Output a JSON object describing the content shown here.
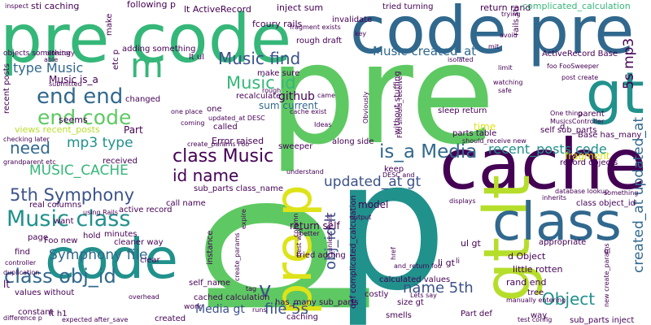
{
  "palette": {
    "dark_purple": "#440154",
    "indigo": "#3b528b",
    "blue": "#31688e",
    "teal": "#21918c",
    "green": "#35b779",
    "light_green": "#5ec962",
    "yellow_green": "#b5de2b",
    "yellow": "#dde318"
  },
  "words": [
    {
      "text": "p"
    },
    {
      "text": "pre"
    },
    {
      "text": "code"
    },
    {
      "text": "code pre"
    },
    {
      "text": "pre code"
    },
    {
      "text": "cache"
    },
    {
      "text": "gt lt"
    },
    {
      "text": "gt"
    },
    {
      "text": "class"
    },
    {
      "text": "p"
    },
    {
      "text": "pre p"
    },
    {
      "text": "m"
    },
    {
      "text": "Music class"
    },
    {
      "text": "class obj_id"
    },
    {
      "text": "end end"
    },
    {
      "text": "end code"
    },
    {
      "text": "Music find"
    },
    {
      "text": "Music id"
    },
    {
      "text": "class Music"
    },
    {
      "text": "is_a Media"
    },
    {
      "text": "id name"
    },
    {
      "text": "5th Symphony"
    },
    {
      "text": "MUSIC_CACHE"
    },
    {
      "text": "need"
    },
    {
      "text": "mp3 type"
    },
    {
      "text": "type Music"
    },
    {
      "text": "Symphony file"
    },
    {
      "text": "Object"
    },
    {
      "text": "name 5th"
    },
    {
      "text": "file 5s"
    },
    {
      "text": "Music created_at"
    },
    {
      "text": "recent_posts code"
    },
    {
      "text": "updated_at gt"
    },
    {
      "text": "obj_id lt"
    },
    {
      "text": "5s mp3"
    },
    {
      "text": "created_at updated_at"
    },
    {
      "text": "Media gt"
    },
    {
      "text": "v"
    },
    {
      "text": "Music is_a"
    },
    {
      "text": "sti caching"
    },
    {
      "text": "following p"
    },
    {
      "text": "lt ActiveRecord"
    },
    {
      "text": "inject sum"
    },
    {
      "text": "fcoury rails"
    },
    {
      "text": "return rand"
    },
    {
      "text": "complicated_calculation"
    },
    {
      "text": "github"
    },
    {
      "text": "sum current"
    },
    {
      "text": "views recent_posts"
    },
    {
      "text": "Error raised"
    },
    {
      "text": "Part"
    },
    {
      "text": "recalculate"
    },
    {
      "text": "time"
    },
    {
      "text": "fragment"
    },
    {
      "text": "model"
    },
    {
      "text": "return self"
    },
    {
      "text": "class object_id"
    },
    {
      "text": "li gt"
    },
    {
      "text": "ul gt"
    },
    {
      "text": "d Object"
    },
    {
      "text": "little rotten"
    },
    {
      "text": "rand end"
    },
    {
      "text": "tree"
    },
    {
      "text": "calculated values"
    },
    {
      "text": "cached calculation"
    },
    {
      "text": "has_many sub_parts"
    },
    {
      "text": "self sub_parts"
    },
    {
      "text": "Base has_many"
    },
    {
      "text": "record objects"
    },
    {
      "text": "appropriate"
    },
    {
      "text": "seems"
    },
    {
      "text": "want"
    },
    {
      "text": "minutes"
    },
    {
      "text": "hold"
    },
    {
      "text": "cleaner way"
    },
    {
      "text": "instance"
    },
    {
      "text": "keep"
    },
    {
      "text": "sub_parts class_name"
    },
    {
      "text": "call name"
    },
    {
      "text": "along side"
    },
    {
      "text": "created"
    },
    {
      "text": "constant"
    },
    {
      "text": "lt h1"
    },
    {
      "text": "values without"
    },
    {
      "text": "caching"
    },
    {
      "text": "smells"
    },
    {
      "text": "costly"
    },
    {
      "text": "size gt"
    },
    {
      "text": "Part def"
    },
    {
      "text": "way"
    },
    {
      "text": "sub_parts inject"
    },
    {
      "text": "def complicated_calculation"
    },
    {
      "text": "parts table"
    },
    {
      "text": "recent posts"
    },
    {
      "text": "rough draft"
    },
    {
      "text": "invalidate"
    },
    {
      "text": "tried turning"
    },
    {
      "text": "changed"
    },
    {
      "text": "make sure"
    },
    {
      "text": "ActiveRecord Base"
    },
    {
      "text": "parent"
    },
    {
      "text": "sleep return"
    },
    {
      "text": "without stuffing"
    },
    {
      "text": "self_name"
    },
    {
      "text": "Foo new"
    },
    {
      "text": "page"
    },
    {
      "text": "find"
    },
    {
      "text": "lt"
    },
    {
      "text": "lt ul"
    },
    {
      "text": "clear"
    },
    {
      "text": "real columns"
    },
    {
      "text": "active record"
    },
    {
      "text": "received"
    },
    {
      "text": "one"
    },
    {
      "text": "called"
    },
    {
      "text": "sweeper"
    },
    {
      "text": "objects something"
    },
    {
      "text": "adding something"
    },
    {
      "text": "etc p"
    },
    {
      "text": "make"
    },
    {
      "text": "rails sti"
    },
    {
      "text": "key"
    },
    {
      "text": "fragment exists"
    },
    {
      "text": "post create"
    },
    {
      "text": "foo FooSweeper"
    },
    {
      "text": "d"
    },
    {
      "text": "Ideas"
    },
    {
      "text": "manually entering"
    },
    {
      "text": "should_receive new"
    },
    {
      "text": "Foo should_receive"
    },
    {
      "text": "understand"
    },
    {
      "text": "grandparent etc"
    },
    {
      "text": "create_params Foo"
    },
    {
      "text": "DESC and"
    },
    {
      "text": "updated_at DESC"
    },
    {
      "text": "tried adding"
    },
    {
      "text": "better"
    },
    {
      "text": "displays"
    },
    {
      "text": "expire"
    },
    {
      "text": "create_params"
    },
    {
      "text": "new create_params"
    },
    {
      "text": "database lookup"
    },
    {
      "text": "something"
    },
    {
      "text": "duplication"
    },
    {
      "text": "controller"
    },
    {
      "text": "difference p"
    },
    {
      "text": "expected after_save"
    },
    {
      "text": "test config"
    },
    {
      "text": "overhead"
    },
    {
      "text": "Lets say"
    },
    {
      "text": "and_return foo"
    },
    {
      "text": "unless Rails"
    },
    {
      "text": "using Rails"
    },
    {
      "text": "checking later"
    },
    {
      "text": "one place"
    },
    {
      "text": "rough"
    },
    {
      "text": "Obviously"
    },
    {
      "text": "column"
    },
    {
      "text": "best way"
    },
    {
      "text": "cache exist"
    },
    {
      "text": "watching"
    },
    {
      "text": "safe"
    },
    {
      "text": "limit"
    },
    {
      "text": "directory"
    },
    {
      "text": "isolated"
    },
    {
      "text": "trying"
    },
    {
      "text": "avoid"
    },
    {
      "text": "able"
    },
    {
      "text": "came"
    },
    {
      "text": "coming"
    },
    {
      "text": "One thing"
    },
    {
      "text": "MusicsController"
    },
    {
      "text": "work"
    },
    {
      "text": "tag"
    },
    {
      "text": "runs"
    },
    {
      "text": "inherits"
    },
    {
      "text": "output"
    },
    {
      "text": "href"
    },
    {
      "text": "submitted"
    },
    {
      "text": "inspect"
    },
    {
      "text": "mit"
    },
    {
      "text": "ul"
    },
    {
      "text": "li"
    }
  ]
}
